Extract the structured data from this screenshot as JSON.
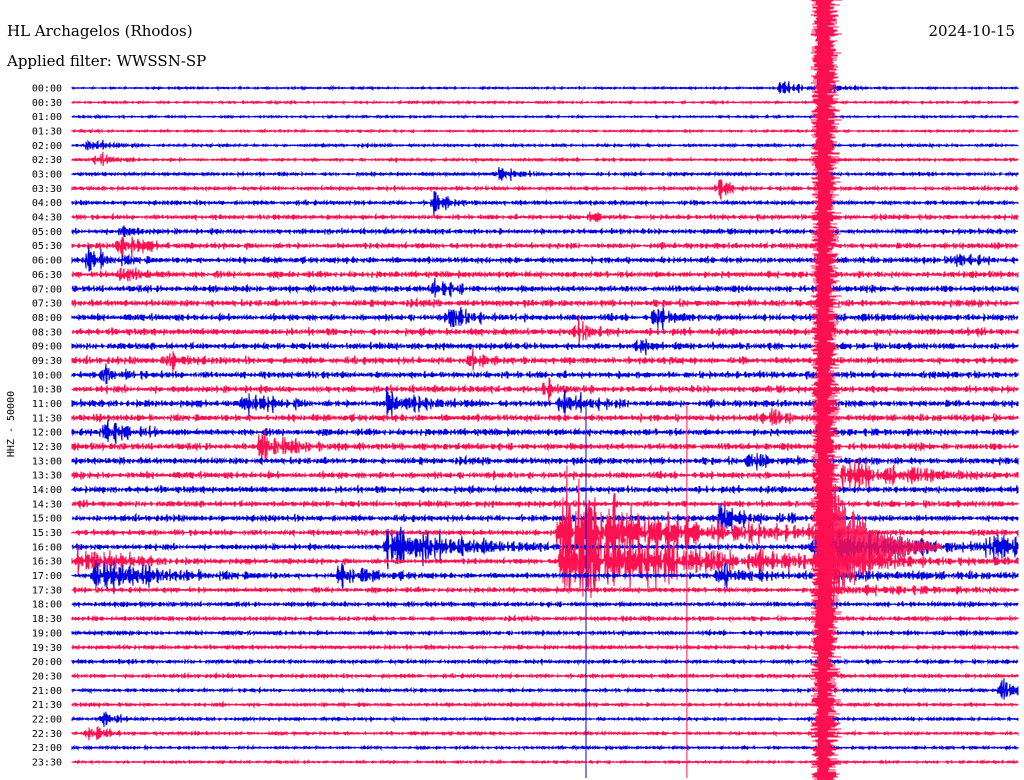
{
  "header": {
    "station": "HL Archagelos (Rhodos)",
    "date": "2024-10-15",
    "filter": "Applied filter: WWSSN-SP"
  },
  "chart_data": {
    "type": "helicorder",
    "title": "HL Archagelos (Rhodos)",
    "date": "2024-10-15",
    "filter": "WWSSN-SP",
    "ylabel": "HHZ - 50000",
    "xlabel": "",
    "grid": false,
    "colors": [
      "#0000e0",
      "#ff1050"
    ],
    "row_labels": [
      "00:00",
      "00:30",
      "01:00",
      "01:30",
      "02:00",
      "02:30",
      "03:00",
      "03:30",
      "04:00",
      "04:30",
      "05:00",
      "05:30",
      "06:00",
      "06:30",
      "07:00",
      "07:30",
      "08:00",
      "08:30",
      "09:00",
      "09:30",
      "10:00",
      "10:30",
      "11:00",
      "11:30",
      "12:00",
      "12:30",
      "13:00",
      "13:30",
      "14:00",
      "14:30",
      "15:00",
      "15:30",
      "16:00",
      "16:30",
      "17:00",
      "17:30",
      "18:00",
      "18:30",
      "19:00",
      "19:30",
      "20:00",
      "20:30",
      "21:00",
      "21:30",
      "22:00",
      "22:30",
      "23:00",
      "23:30"
    ],
    "noise_level": [
      0.9,
      1.0,
      0.9,
      1.0,
      1.2,
      1.3,
      1.5,
      1.7,
      1.9,
      2.1,
      2.3,
      2.5,
      2.7,
      2.8,
      2.9,
      3.0,
      3.0,
      3.0,
      3.0,
      3.0,
      3.0,
      3.0,
      3.0,
      3.0,
      3.0,
      3.0,
      3.0,
      3.0,
      2.9,
      2.8,
      2.7,
      2.6,
      2.5,
      2.4,
      2.3,
      2.2,
      2.1,
      2.0,
      1.9,
      1.8,
      1.8,
      1.7,
      1.6,
      1.5,
      1.4,
      1.3,
      1.2,
      1.1
    ],
    "events": [
      {
        "row": 0,
        "minute": 23.5,
        "amp": 8,
        "dur": 0.6
      },
      {
        "row": 0,
        "minute": 22.5,
        "amp": 5,
        "dur": 0.8
      },
      {
        "row": 4,
        "minute": 0.5,
        "amp": 7,
        "dur": 0.6
      },
      {
        "row": 5,
        "minute": 0.8,
        "amp": 6,
        "dur": 0.5
      },
      {
        "row": 6,
        "minute": 13.5,
        "amp": 8,
        "dur": 0.5
      },
      {
        "row": 8,
        "minute": 11.5,
        "amp": 11,
        "dur": 0.4
      },
      {
        "row": 7,
        "minute": 20.5,
        "amp": 9,
        "dur": 0.4
      },
      {
        "row": 9,
        "minute": 16.5,
        "amp": 6,
        "dur": 0.4
      },
      {
        "row": 10,
        "minute": 1.5,
        "amp": 6,
        "dur": 0.5
      },
      {
        "row": 11,
        "minute": 1.5,
        "amp": 12,
        "dur": 0.6
      },
      {
        "row": 12,
        "minute": 0.5,
        "amp": 11,
        "dur": 0.7
      },
      {
        "row": 12,
        "minute": 28.0,
        "amp": 9,
        "dur": 0.5
      },
      {
        "row": 13,
        "minute": 1.5,
        "amp": 9,
        "dur": 0.6
      },
      {
        "row": 14,
        "minute": 11.5,
        "amp": 9,
        "dur": 0.5
      },
      {
        "row": 16,
        "minute": 12.0,
        "amp": 12,
        "dur": 0.6
      },
      {
        "row": 16,
        "minute": 18.5,
        "amp": 10,
        "dur": 0.5
      },
      {
        "row": 17,
        "minute": 16.0,
        "amp": 10,
        "dur": 0.5
      },
      {
        "row": 18,
        "minute": 18.0,
        "amp": 9,
        "dur": 0.5
      },
      {
        "row": 19,
        "minute": 3.0,
        "amp": 10,
        "dur": 0.5
      },
      {
        "row": 19,
        "minute": 12.5,
        "amp": 8,
        "dur": 0.5
      },
      {
        "row": 20,
        "minute": 1.0,
        "amp": 8,
        "dur": 0.5
      },
      {
        "row": 21,
        "minute": 15.0,
        "amp": 8,
        "dur": 0.6
      },
      {
        "row": 22,
        "minute": 5.5,
        "amp": 10,
        "dur": 0.8
      },
      {
        "row": 22,
        "minute": 10.0,
        "amp": 12,
        "dur": 1.0
      },
      {
        "row": 22,
        "minute": 15.5,
        "amp": 12,
        "dur": 0.8
      },
      {
        "row": 23,
        "minute": 22.0,
        "amp": 10,
        "dur": 0.6
      },
      {
        "row": 24,
        "minute": 1.0,
        "amp": 12,
        "dur": 0.8
      },
      {
        "row": 25,
        "minute": 6.0,
        "amp": 12,
        "dur": 1.0
      },
      {
        "row": 26,
        "minute": 21.5,
        "amp": 10,
        "dur": 0.6
      },
      {
        "row": 27,
        "minute": 24.5,
        "amp": 14,
        "dur": 1.6
      },
      {
        "row": 30,
        "minute": 20.5,
        "amp": 10,
        "dur": 1.2
      },
      {
        "row": 32,
        "minute": 10.0,
        "amp": 22,
        "dur": 1.8
      },
      {
        "row": 32,
        "minute": 23.5,
        "amp": 12,
        "dur": 1.0
      },
      {
        "row": 32,
        "minute": 29.0,
        "amp": 10,
        "dur": 2.5
      },
      {
        "row": 33,
        "minute": 0.2,
        "amp": 14,
        "dur": 1.2
      },
      {
        "row": 34,
        "minute": 0.7,
        "amp": 14,
        "dur": 2.0
      },
      {
        "row": 34,
        "minute": 8.5,
        "amp": 10,
        "dur": 1.0
      },
      {
        "row": 34,
        "minute": 20.5,
        "amp": 10,
        "dur": 1.2
      },
      {
        "row": 42,
        "minute": 29.5,
        "amp": 18,
        "dur": 0.6
      },
      {
        "row": 44,
        "minute": 1.0,
        "amp": 8,
        "dur": 0.4
      },
      {
        "row": 45,
        "minute": 0.5,
        "amp": 8,
        "dur": 0.6
      },
      {
        "row": 31,
        "minute": 15.5,
        "amp": 50,
        "dur": 3.0
      },
      {
        "row": 33,
        "minute": 15.5,
        "amp": 45,
        "dur": 3.5
      }
    ],
    "earthquake": {
      "start_row": 0,
      "start_minute": 23.8,
      "peak_row": 32,
      "coda_rows": 4
    },
    "spikes": [
      {
        "minute": 16.3,
        "from_row": 22,
        "to_row": 47
      },
      {
        "minute": 19.5,
        "from_row": 22,
        "to_row": 47
      }
    ]
  }
}
